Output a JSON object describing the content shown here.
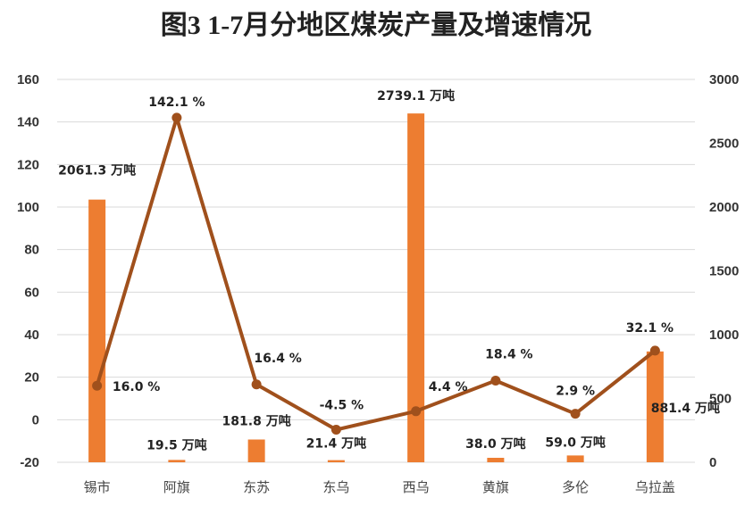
{
  "chart_data": {
    "type": "bar+line",
    "title": "图3  1-7月分地区煤炭产量及增速情况",
    "categories": [
      "锡市",
      "阿旗",
      "东苏",
      "东乌",
      "西乌",
      "黄旗",
      "多伦",
      "乌拉盖"
    ],
    "left_axis": {
      "min": -20,
      "max": 160,
      "step": 20,
      "ticks": [
        "-20",
        "0",
        "20",
        "40",
        "60",
        "80",
        "100",
        "120",
        "140",
        "160"
      ]
    },
    "right_axis": {
      "min": 0,
      "max": 3000,
      "step": 500,
      "ticks": [
        "0",
        "500",
        "1000",
        "1500",
        "2000",
        "2500",
        "3000"
      ]
    },
    "bars": {
      "color": "#ED7D31",
      "axis": "left",
      "values": [
        103.5,
        -18.9,
        -9.3,
        -19.0,
        144.0,
        -17.9,
        -16.8,
        32.1
      ],
      "labels": [
        "2061.3 万吨",
        "19.5 万吨",
        "181.8 万吨",
        "21.4 万吨",
        "2739.1 万吨",
        "38.0 万吨",
        "59.0 万吨",
        "881.4 万吨"
      ]
    },
    "line": {
      "color": "#A0501C",
      "axis": "right",
      "values": [
        600,
        2700,
        610,
        255,
        400,
        640,
        380,
        875
      ],
      "labels": [
        "16.0 %",
        "142.1 %",
        "16.4 %",
        "-4.5 %",
        "4.4 %",
        "18.4 %",
        "2.9 %",
        "32.1 %"
      ]
    },
    "grid": true
  }
}
